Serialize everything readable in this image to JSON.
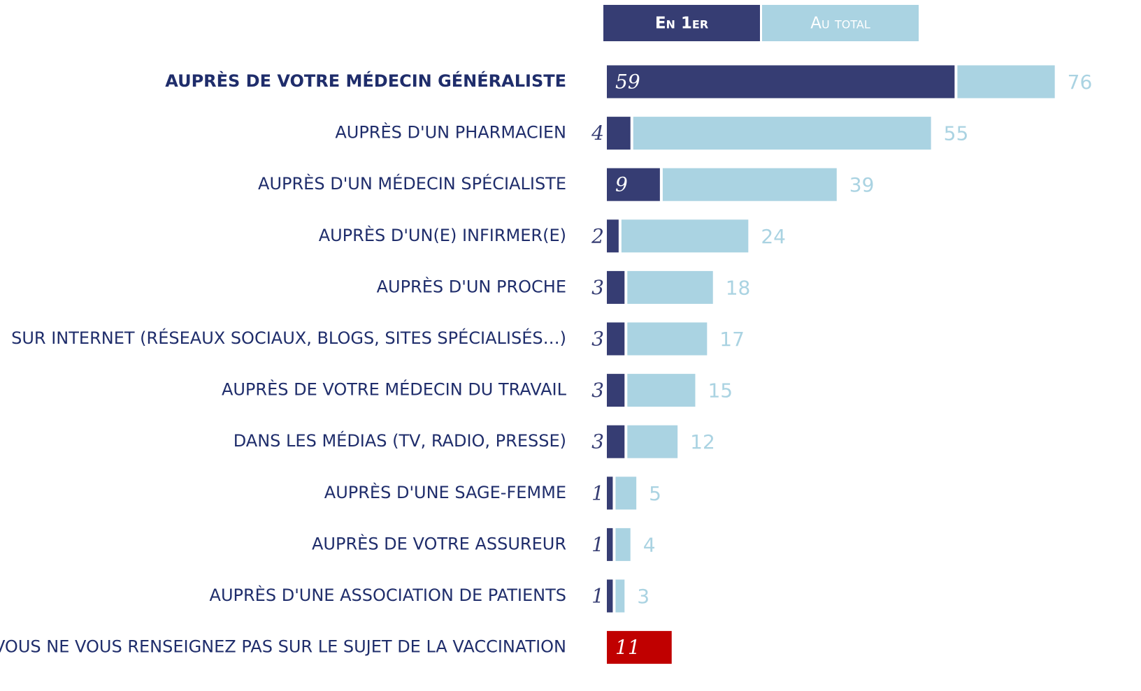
{
  "chart_data": {
    "type": "bar",
    "orientation": "horizontal",
    "categories": [
      "AUPRÈS DE VOTRE MÉDECIN GÉNÉRALISTE",
      "AUPRÈS D'UN PHARMACIEN",
      "AUPRÈS D'UN MÉDECIN SPÉCIALISTE",
      "AUPRÈS D'UN(E) INFIRMER(E)",
      "AUPRÈS D'UN PROCHE",
      "SUR INTERNET (RÉSEAUX SOCIAUX, BLOGS, SITES SPÉCIALISÉS…)",
      "AUPRÈS DE VOTRE MÉDECIN DU TRAVAIL",
      "DANS LES MÉDIAS (TV, RADIO, PRESSE)",
      "AUPRÈS D'UNE SAGE-FEMME",
      "AUPRÈS DE VOTRE ASSUREUR",
      "AUPRÈS D'UNE ASSOCIATION DE PATIENTS",
      "VOUS NE VOUS RENSEIGNEZ PAS SUR LE SUJET DE LA VACCINATION"
    ],
    "series": [
      {
        "name": "En 1er",
        "color": "#363d73",
        "colors": [
          "#363d73",
          "#363d73",
          "#363d73",
          "#363d73",
          "#363d73",
          "#363d73",
          "#363d73",
          "#363d73",
          "#363d73",
          "#363d73",
          "#363d73",
          "#c00000"
        ],
        "values": [
          59,
          4,
          9,
          2,
          3,
          3,
          3,
          3,
          1,
          1,
          1,
          11
        ]
      },
      {
        "name": "Au total",
        "color": "#aad3e2",
        "values": [
          76,
          55,
          39,
          24,
          18,
          17,
          15,
          12,
          5,
          4,
          3,
          null
        ]
      }
    ]
  }
}
